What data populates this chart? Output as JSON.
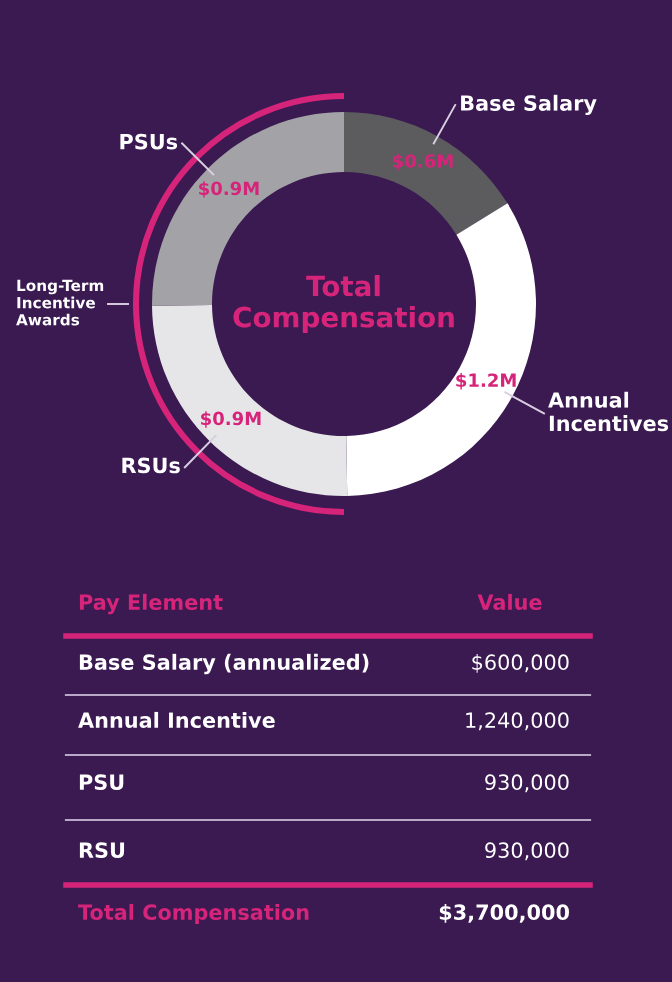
{
  "chart_data": {
    "type": "donut",
    "title": "Total Compensation",
    "categories": [
      "Base Salary",
      "Annual Incentives",
      "RSUs",
      "PSUs"
    ],
    "values": [
      600000,
      1240000,
      930000,
      930000
    ],
    "value_labels": [
      "$0.6M",
      "$1.2M",
      "$0.9M",
      "$0.9M"
    ],
    "colors": [
      "#5c5c5e",
      "#ffffff",
      "#e6e6e9",
      "#a3a3a7"
    ],
    "annotations": [
      "Long-Term Incentive Awards",
      "Pay Element",
      "Value",
      "Base Salary (annualized)",
      "$600,000",
      "Annual Incentive",
      "1,240,000",
      "PSU",
      "930,000",
      "RSU",
      "930,000",
      "Total Compensation",
      "$3,700,000"
    ]
  }
}
